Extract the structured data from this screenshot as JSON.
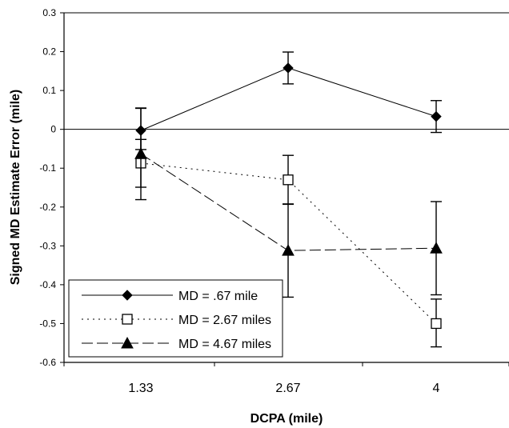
{
  "chart_data": {
    "type": "line",
    "title": "",
    "xlabel": "DCPA (mile)",
    "ylabel": "Signed MD Estimate Error (mile)",
    "categories": [
      "1.33",
      "2.67",
      "4"
    ],
    "y_ticks": [
      "0.3",
      "0.2",
      "0.1",
      "0",
      "-0.1",
      "-0.2",
      "-0.3",
      "-0.4",
      "-0.5",
      "-0.6"
    ],
    "ylim": [
      -0.6,
      0.3
    ],
    "legend_position": "bottom-left",
    "zero_line": true,
    "grid": false,
    "series": [
      {
        "name": "MD = .67 mile",
        "marker": "diamond",
        "line_style": "solid",
        "values": [
          -0.003,
          0.158,
          0.033
        ],
        "error_low": [
          -0.052,
          0.117,
          -0.008
        ],
        "error_high": [
          0.054,
          0.199,
          0.074
        ],
        "color": "#000000"
      },
      {
        "name": "MD = 2.67 miles",
        "marker": "open-square",
        "line_style": "dotted",
        "values": [
          -0.087,
          -0.13,
          -0.5
        ],
        "error_low": [
          -0.149,
          -0.193,
          -0.56
        ],
        "error_high": [
          -0.026,
          -0.067,
          -0.437
        ],
        "color": "#000000"
      },
      {
        "name": "MD = 4.67 miles",
        "marker": "triangle",
        "line_style": "dashed",
        "values": [
          -0.063,
          -0.312,
          -0.306
        ],
        "error_low": [
          -0.181,
          -0.432,
          -0.426
        ],
        "error_high": [
          0.055,
          -0.192,
          -0.186
        ],
        "color": "#000000"
      }
    ]
  }
}
